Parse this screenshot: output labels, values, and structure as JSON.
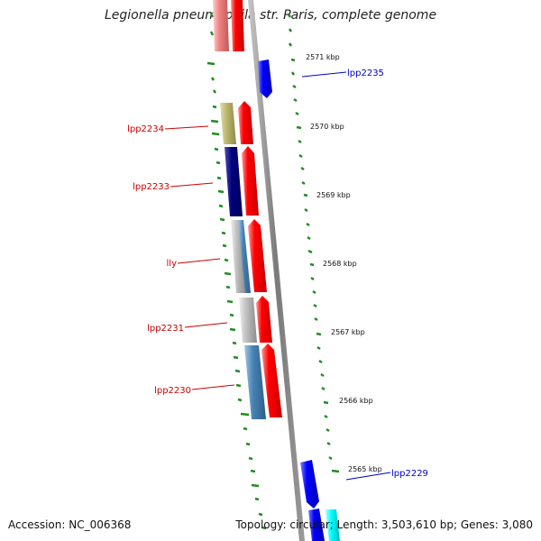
{
  "title": "Legionella pneumophila str. Paris, complete genome",
  "footer": {
    "accession": "Accession: NC_006368",
    "summary": "Topology: circular; Length: 3,503,610 bp; Genes: 3,080"
  },
  "kbp_labels": [
    "2571 kbp",
    "2570 kbp",
    "2569 kbp",
    "2568 kbp",
    "2567 kbp",
    "2566 kbp",
    "2565 kbp"
  ],
  "gene_labels": {
    "lpp2235": "lpp2235",
    "lpp2234": "lpp2234",
    "lpp2233": "lpp2233",
    "lly": "lly",
    "lpp2231": "lpp2231",
    "lpp2230": "lpp2230",
    "lpp2229": "lpp2229"
  },
  "colors": {
    "backbone": "#808080",
    "forward_cds": "#ff0000",
    "reverse_cds": "#0000ff",
    "label_forward": "#cc0000",
    "label_reverse": "#0000cc",
    "gc_skew": "#228b22",
    "cog_khaki": "#bdb76b",
    "cog_navy": "#000080",
    "cog_steelblue": "#4682b4",
    "cog_silver": "#c0c0c0",
    "cog_pink": "#f08080",
    "cog_cyan": "#00ffff"
  }
}
